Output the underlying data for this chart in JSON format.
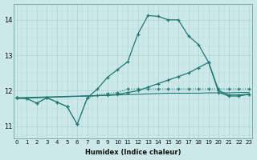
{
  "xlabel": "Humidex (Indice chaleur)",
  "bg_color": "#cce8e8",
  "grid_color": "#b0d8d8",
  "line_color": "#1f7872",
  "x_min": -0.3,
  "x_max": 23.3,
  "y_min": 10.65,
  "y_max": 14.45,
  "yticks": [
    11,
    12,
    13,
    14
  ],
  "xticks": [
    0,
    1,
    2,
    3,
    4,
    5,
    6,
    7,
    8,
    9,
    10,
    11,
    12,
    13,
    14,
    15,
    16,
    17,
    18,
    19,
    20,
    21,
    22,
    23
  ],
  "series": [
    {
      "x": [
        0,
        1,
        2,
        3,
        4,
        5,
        6,
        7,
        8,
        9,
        10,
        11,
        12,
        13,
        14,
        15,
        16,
        17,
        18,
        19,
        20,
        21,
        22,
        23
      ],
      "y": [
        11.8,
        11.78,
        11.65,
        11.8,
        11.68,
        11.55,
        11.05,
        11.8,
        11.88,
        11.92,
        11.95,
        12.05,
        12.05,
        12.05,
        12.05,
        12.05,
        12.05,
        12.05,
        12.05,
        12.05,
        12.05,
        12.05,
        12.05,
        12.05
      ],
      "marker": "+",
      "linestyle": "dotted",
      "lw": 0.8
    },
    {
      "x": [
        0,
        1,
        2,
        3,
        4,
        5,
        6,
        7,
        8,
        9,
        10,
        11,
        12,
        13,
        14,
        15,
        16,
        17,
        18,
        19,
        20,
        21,
        22,
        23
      ],
      "y": [
        11.8,
        11.78,
        11.65,
        11.8,
        11.68,
        11.55,
        11.05,
        11.8,
        12.05,
        12.38,
        12.6,
        12.82,
        13.6,
        14.12,
        14.1,
        14.0,
        14.0,
        13.55,
        13.3,
        12.8,
        11.95,
        11.85,
        11.85,
        11.9
      ],
      "marker": "+",
      "linestyle": "solid",
      "lw": 0.9
    },
    {
      "x": [
        0,
        1,
        2,
        3,
        4,
        5,
        6,
        7,
        8,
        9,
        10,
        11,
        12,
        13,
        14,
        15,
        16,
        17,
        18,
        19,
        20,
        21,
        22,
        23
      ],
      "y": [
        11.78,
        11.79,
        11.8,
        11.81,
        11.82,
        11.83,
        11.84,
        11.85,
        11.86,
        11.87,
        11.88,
        11.89,
        11.9,
        11.91,
        11.92,
        11.93,
        11.93,
        11.93,
        11.93,
        11.94,
        11.94,
        11.94,
        11.95,
        11.95
      ],
      "marker": null,
      "linestyle": "solid",
      "lw": 0.8
    },
    {
      "x": [
        0,
        9,
        10,
        11,
        12,
        13,
        14,
        15,
        16,
        17,
        18,
        19,
        20,
        21,
        22,
        23
      ],
      "y": [
        11.8,
        11.87,
        11.9,
        11.95,
        12.0,
        12.1,
        12.2,
        12.3,
        12.4,
        12.5,
        12.65,
        12.8,
        12.0,
        11.88,
        11.88,
        11.9
      ],
      "marker": "+",
      "linestyle": "solid",
      "lw": 0.9
    }
  ]
}
